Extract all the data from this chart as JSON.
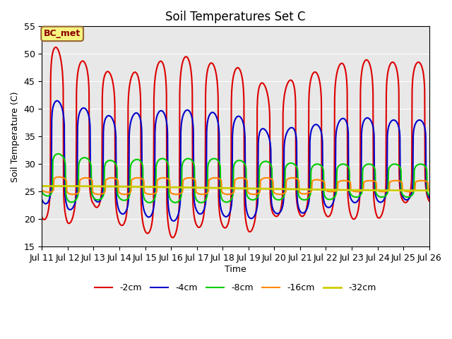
{
  "title": "Soil Temperatures Set C",
  "xlabel": "Time",
  "ylabel": "Soil Temperature (C)",
  "ylim": [
    15,
    55
  ],
  "annotation": "BC_met",
  "legend_labels": [
    "-2cm",
    "-4cm",
    "-8cm",
    "-16cm",
    "-32cm"
  ],
  "legend_colors": [
    "#dd0000",
    "#0000cc",
    "#00cc00",
    "#ff8800",
    "#cccc00"
  ],
  "line_widths": [
    1.5,
    1.5,
    1.5,
    1.5,
    2.0
  ],
  "background_color": "#e8e8e8",
  "tick_labels": [
    "Jul 11",
    "Jul 12",
    "Jul 13",
    "Jul 14",
    "Jul 15",
    "Jul 16",
    "Jul 17",
    "Jul 18",
    "Jul 19",
    "Jul 20",
    "Jul 21",
    "Jul 22",
    "Jul 23",
    "Jul 24",
    "Jul 25",
    "Jul 26"
  ],
  "n_days": 15,
  "peaks_2cm": [
    54.0,
    49.0,
    48.5,
    45.5,
    47.5,
    49.5,
    49.5,
    47.5,
    47.5,
    42.5,
    47.0,
    46.5,
    49.5,
    48.5,
    48.5
  ],
  "troughs_2cm": [
    20.0,
    19.0,
    22.5,
    19.0,
    17.5,
    16.5,
    18.5,
    18.5,
    17.5,
    20.5,
    20.5,
    20.5,
    20.0,
    20.0,
    23.0
  ],
  "peaks_4cm": [
    43.0,
    40.5,
    40.0,
    38.0,
    40.0,
    39.5,
    40.0,
    39.0,
    38.5,
    35.0,
    37.5,
    37.0,
    39.0,
    38.0,
    38.0
  ],
  "troughs_4cm": [
    23.0,
    21.5,
    23.5,
    21.0,
    20.5,
    19.5,
    21.0,
    20.5,
    20.0,
    21.0,
    21.0,
    22.0,
    23.0,
    23.0,
    23.5
  ],
  "peaks_8cm": [
    32.5,
    31.5,
    31.0,
    30.5,
    31.0,
    31.0,
    31.0,
    31.0,
    30.5,
    30.5,
    30.0,
    30.0,
    30.0,
    30.0,
    30.0
  ],
  "troughs_8cm": [
    24.5,
    23.0,
    23.5,
    23.5,
    23.0,
    23.0,
    23.0,
    23.0,
    23.5,
    23.5,
    23.5,
    23.5,
    24.0,
    24.0,
    24.0
  ],
  "peaks_16cm": [
    28.0,
    27.5,
    27.5,
    27.5,
    27.5,
    27.5,
    27.5,
    27.5,
    27.5,
    27.5,
    27.5,
    27.0,
    27.0,
    27.0,
    27.0
  ],
  "troughs_16cm": [
    25.0,
    24.5,
    24.5,
    24.5,
    24.5,
    24.5,
    24.5,
    24.5,
    24.5,
    24.5,
    24.5,
    25.0,
    25.0,
    25.0,
    25.0
  ],
  "peak_hour_2cm": 14,
  "trough_hour_2cm": 5,
  "peak_hour_4cm": 15,
  "peak_hour_8cm": 16,
  "peak_hour_16cm": 17,
  "peak_sharpness": 6.0,
  "mean_32cm": 25.6,
  "amp_32cm": 0.4
}
